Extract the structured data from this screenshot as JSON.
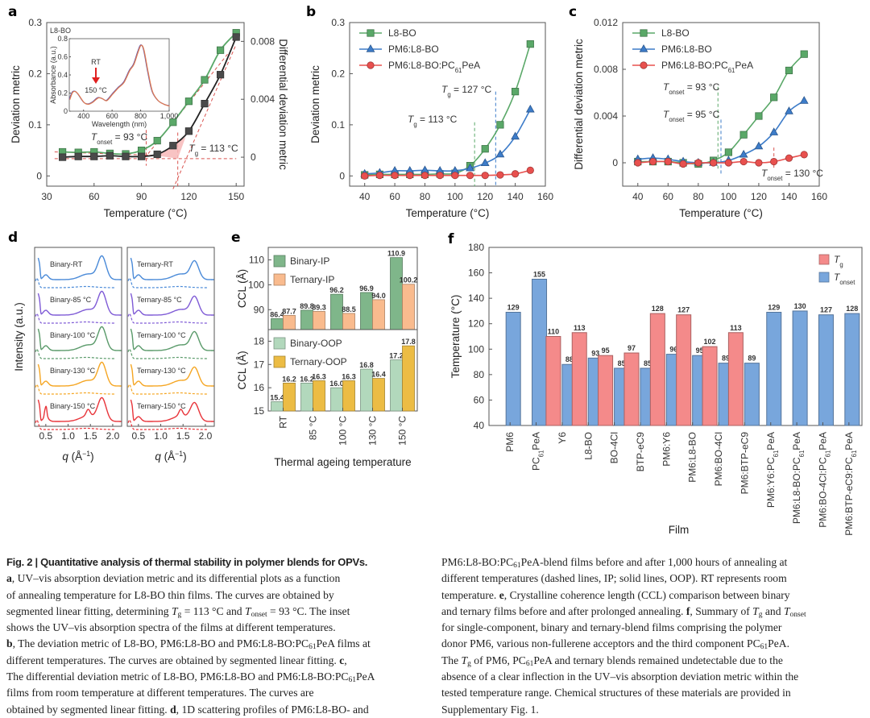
{
  "figure": {
    "panel_labels": [
      "a",
      "b",
      "c",
      "d",
      "e",
      "f"
    ]
  },
  "chart_data": [
    {
      "id": "a",
      "type": "line",
      "title": "",
      "corner_label": "L8-BO",
      "xlabel": "Temperature (°C)",
      "ylabel": "Deviation metric",
      "ylabel_right": "Differential deviation metric",
      "xlim": [
        30,
        155
      ],
      "xticks": [
        30,
        60,
        90,
        120,
        150
      ],
      "ylim": [
        -0.02,
        0.3
      ],
      "yticks": [
        0,
        0.1,
        0.2,
        0.3
      ],
      "ytick_labels": [
        "0",
        "0.1",
        "0.2",
        "0.3"
      ],
      "ylim_right": [
        -0.002,
        0.0093
      ],
      "yticks_right": [
        0,
        0.004,
        0.008
      ],
      "ytick_labels_right": [
        "0",
        "0.004",
        "0.008"
      ],
      "x": [
        40,
        50,
        60,
        70,
        80,
        90,
        100,
        110,
        120,
        130,
        140,
        150
      ],
      "series": [
        {
          "name": "Deviation metric",
          "color": "#5aa868",
          "marker": "square",
          "axis": "left",
          "values": [
            0.047,
            0.046,
            0.047,
            0.044,
            0.043,
            0.05,
            0.069,
            0.105,
            0.146,
            0.188,
            0.246,
            0.28
          ]
        },
        {
          "name": "Differential deviation metric",
          "color": "#222222",
          "marker": "square",
          "axis": "right",
          "values": [
            0.0,
            5e-05,
            5e-05,
            0.0001,
            5e-05,
            5e-05,
            0.0002,
            0.0008,
            0.0018,
            0.0037,
            0.0057,
            0.0083
          ]
        }
      ],
      "annotations": [
        {
          "label_main": "T",
          "label_sub": "onset",
          "label_rest": " = 93 °C",
          "x": 93
        },
        {
          "label_main": "T",
          "label_sub": "g",
          "label_rest": " = 113 °C",
          "x": 113
        }
      ],
      "inset": {
        "xlabel": "Wavelength (nm)",
        "ylabel": "Absorbance (a.u.)",
        "xticks": [
          "400",
          "600",
          "800",
          "1,000"
        ],
        "yticks": [
          "0",
          "0.2",
          "0.4",
          "0.6",
          "0.8"
        ],
        "xlim": [
          300,
          1000
        ],
        "ylim": [
          0,
          0.8
        ],
        "arrow_top": "RT",
        "arrow_bottom": "150 °C",
        "spectrum": {
          "x": [
            300,
            320,
            340,
            360,
            400,
            430,
            460,
            500,
            530,
            560,
            600,
            640,
            680,
            720,
            750,
            780,
            800,
            820,
            850,
            880,
            920,
            960,
            1000
          ],
          "y": [
            0.13,
            0.21,
            0.22,
            0.19,
            0.1,
            0.08,
            0.1,
            0.15,
            0.14,
            0.12,
            0.19,
            0.26,
            0.32,
            0.45,
            0.52,
            0.66,
            0.73,
            0.68,
            0.43,
            0.22,
            0.12,
            0.08,
            0.06
          ]
        }
      }
    },
    {
      "id": "b",
      "type": "line",
      "xlabel": "Temperature (°C)",
      "ylabel": "Deviation metric",
      "xlim": [
        30,
        160
      ],
      "xticks": [
        40,
        60,
        80,
        100,
        120,
        140,
        160
      ],
      "ylim": [
        -0.02,
        0.3
      ],
      "yticks": [
        0,
        0.1,
        0.2,
        0.3
      ],
      "ytick_labels": [
        "0",
        "0.1",
        "0.2",
        "0.3"
      ],
      "legend": "top-left",
      "x": [
        40,
        50,
        60,
        70,
        80,
        90,
        100,
        110,
        120,
        130,
        140,
        150
      ],
      "series": [
        {
          "name": "L8-BO",
          "color": "#5aa868",
          "marker": "square",
          "values": [
            0.002,
            0.003,
            0.003,
            0.003,
            0.003,
            0.004,
            0.005,
            0.02,
            0.053,
            0.1,
            0.165,
            0.258
          ]
        },
        {
          "name": "PM6:L8-BO",
          "color": "#3d7cc9",
          "marker": "triangle",
          "values": [
            0.004,
            0.006,
            0.01,
            0.01,
            0.011,
            0.01,
            0.01,
            0.015,
            0.025,
            0.042,
            0.077,
            0.13
          ]
        },
        {
          "name": "PM6:L8-BO:PC61PeA",
          "name_main": "PM6:L8-BO:PC",
          "name_sub": "61",
          "name_rest": "PeA",
          "color": "#e8504e",
          "marker": "circle",
          "values": [
            0.0,
            0.001,
            0.001,
            0.001,
            0.001,
            0.001,
            0.001,
            0.001,
            0.001,
            0.002,
            0.004,
            0.011
          ]
        }
      ],
      "annotations": [
        {
          "label_main": "T",
          "label_sub": "g",
          "label_rest": " = 127 °C",
          "x": 127,
          "color": "#3d7cc9"
        },
        {
          "label_main": "T",
          "label_sub": "g",
          "label_rest": " = 113 °C",
          "x": 113,
          "color": "#5aa868"
        }
      ]
    },
    {
      "id": "c",
      "type": "line",
      "xlabel": "Temperature (°C)",
      "ylabel": "Differential deviation metric",
      "xlim": [
        30,
        160
      ],
      "xticks": [
        40,
        60,
        80,
        100,
        120,
        140,
        160
      ],
      "ylim": [
        -0.002,
        0.012
      ],
      "yticks": [
        0,
        0.004,
        0.008,
        0.012
      ],
      "ytick_labels": [
        "0",
        "0.004",
        "0.008",
        "0.012"
      ],
      "legend": "top-left",
      "x": [
        40,
        50,
        60,
        70,
        80,
        90,
        100,
        110,
        120,
        130,
        140,
        150
      ],
      "series": [
        {
          "name": "L8-BO",
          "color": "#5aa868",
          "marker": "square",
          "values": [
            0.0001,
            0.0001,
            0.0001,
            0.0,
            -0.0001,
            0.0002,
            0.0009,
            0.0024,
            0.004,
            0.0056,
            0.0079,
            0.0093
          ]
        },
        {
          "name": "PM6:L8-BO",
          "color": "#3d7cc9",
          "marker": "triangle",
          "values": [
            0.0003,
            0.0004,
            0.0003,
            0.0001,
            0.0,
            0.0,
            0.0002,
            0.0007,
            0.0014,
            0.0026,
            0.0044,
            0.0053
          ]
        },
        {
          "name": "PM6:L8-BO:PC61PeA",
          "name_main": "PM6:L8-BO:PC",
          "name_sub": "61",
          "name_rest": "PeA",
          "color": "#e8504e",
          "marker": "circle",
          "values": [
            0.0,
            0.0001,
            0.0001,
            -0.0001,
            0.0,
            0.0,
            0.0,
            0.0001,
            0.0,
            0.0001,
            0.0004,
            0.0007
          ]
        }
      ],
      "annotations": [
        {
          "label_main": "T",
          "label_sub": "onset",
          "label_rest": " = 93 °C",
          "x": 93,
          "color": "#5aa868"
        },
        {
          "label_main": "T",
          "label_sub": "onset",
          "label_rest": " = 95 °C",
          "x": 95,
          "color": "#3d7cc9"
        },
        {
          "label_main": "T",
          "label_sub": "onset",
          "label_rest": " = 130 °C",
          "x": 130,
          "color": "#d9534f"
        }
      ]
    },
    {
      "id": "d",
      "type": "line",
      "ylabel": "Intensity (a.u.)",
      "xlabel_main": "q",
      "xlabel_rest": " (Å",
      "xlabel_sup": "−1",
      "xlabel_end": ")",
      "xlim": [
        0.25,
        2.2
      ],
      "xticks": [
        0.5,
        1.0,
        1.5,
        2.0
      ],
      "xtick_labels": [
        "0.5",
        "1.0",
        "1.5",
        "2.0"
      ],
      "panels": [
        {
          "name": "Binary",
          "traces": [
            {
              "label": "Binary-RT",
              "color": "#4a8ad8"
            },
            {
              "label": "Binary-85 °C",
              "color": "#7f5bd6"
            },
            {
              "label": "Binary-100 °C",
              "color": "#5a9a6a"
            },
            {
              "label": "Binary-130 °C",
              "color": "#f5a623"
            },
            {
              "label": "Binary-150 °C",
              "color": "#e8343a"
            }
          ]
        },
        {
          "name": "Ternary",
          "traces": [
            {
              "label": "Ternary-RT",
              "color": "#4a8ad8"
            },
            {
              "label": "Ternary-85 °C",
              "color": "#7f5bd6"
            },
            {
              "label": "Ternary-100 °C",
              "color": "#5a9a6a"
            },
            {
              "label": "Ternary-130 °C",
              "color": "#f5a623"
            },
            {
              "label": "Ternary-150 °C",
              "color": "#e8343a"
            }
          ]
        }
      ],
      "line_styles": {
        "dashed": "IP",
        "solid": "OOP"
      }
    },
    {
      "id": "e",
      "type": "bar",
      "xlabel": "Thermal ageing temperature",
      "categories": [
        "RT",
        "85 °C",
        "100 °C",
        "130 °C",
        "150 °C"
      ],
      "subplots": [
        {
          "ylabel": "CCL (Å)",
          "ylim": [
            82,
            115
          ],
          "yticks": [
            90,
            100,
            110
          ],
          "series": [
            {
              "name": "Binary-IP",
              "color": "#7fb68a",
              "values": [
                86.4,
                89.8,
                96.2,
                96.9,
                110.9
              ]
            },
            {
              "name": "Ternary-IP",
              "color": "#f9bb8e",
              "values": [
                87.7,
                89.3,
                88.5,
                94.0,
                100.2
              ]
            }
          ]
        },
        {
          "ylabel": "CCL (Å)",
          "ylim": [
            15,
            18.5
          ],
          "yticks": [
            15,
            16,
            17,
            18
          ],
          "series": [
            {
              "name": "Binary-OOP",
              "color": "#b2d8bc",
              "values": [
                15.4,
                16.2,
                16.0,
                16.8,
                17.2
              ]
            },
            {
              "name": "Ternary-OOP",
              "color": "#ecbc44",
              "values": [
                16.2,
                16.3,
                16.3,
                16.4,
                17.8
              ]
            }
          ]
        }
      ]
    },
    {
      "id": "f",
      "type": "bar",
      "xlabel": "Film",
      "ylabel": "Temperature (°C)",
      "ylim": [
        40,
        180
      ],
      "yticks": [
        40,
        60,
        80,
        100,
        120,
        140,
        160,
        180
      ],
      "legend": "top-right",
      "categories": [
        {
          "main": "PM6"
        },
        {
          "main": "PC",
          "sub": "61",
          "rest": "PeA"
        },
        {
          "main": "Y6"
        },
        {
          "main": "L8-BO"
        },
        {
          "main": "BO-4Cl"
        },
        {
          "main": "BTP-eC9"
        },
        {
          "main": "PM6:Y6"
        },
        {
          "main": "PM6:L8-BO"
        },
        {
          "main": "PM6:BO-4Cl"
        },
        {
          "main": "PM6:BTP-eC9"
        },
        {
          "main": "PM6:Y6:PC",
          "sub": "61",
          "rest": "PeA"
        },
        {
          "main": "PM6:L8-BO:PC",
          "sub": "61",
          "rest": "PeA"
        },
        {
          "main": "PM6:BO-4Cl:PC",
          "sub": "61",
          "rest": "PeA"
        },
        {
          "main": "PM6:BTP-eC9:PC",
          "sub": "61",
          "rest": "PeA"
        }
      ],
      "series": [
        {
          "name": "Tg",
          "name_main": "T",
          "name_sub": "g",
          "color": "#f48a8a",
          "values": [
            null,
            null,
            110,
            113,
            95,
            97,
            128,
            127,
            102,
            113,
            null,
            null,
            null,
            null
          ]
        },
        {
          "name": "Tonset",
          "name_main": "T",
          "name_sub": "onset",
          "color": "#78a6dc",
          "values": [
            129,
            155,
            88,
            93,
            85,
            85,
            96,
            95,
            89,
            89,
            129,
            130,
            127,
            128
          ]
        }
      ]
    }
  ],
  "caption": {
    "fig_label": "Fig. 2",
    "title": "Quantitative analysis of thermal stability in polymer blends for OPVs.",
    "left_lines": [
      [
        {
          "b": "a"
        },
        {
          "t": ", UV–vis absorption deviation metric and its differential plots as a function"
        }
      ],
      [
        {
          "t": "of annealing temperature for L8-BO thin films. The curves are obtained by"
        }
      ],
      [
        {
          "t": "segmented linear fitting, determining "
        },
        {
          "i": "T"
        },
        {
          "s": "g"
        },
        {
          "t": " = 113 °C and "
        },
        {
          "i": "T"
        },
        {
          "s": "onset"
        },
        {
          "t": " = 93 °C. The inset"
        }
      ],
      [
        {
          "t": "shows the UV–vis absorption spectra of the films at different temperatures."
        }
      ],
      [
        {
          "b": "b"
        },
        {
          "t": ", The deviation metric of L8-BO, PM6:L8-BO and PM6:L8-BO:PC"
        },
        {
          "s": "61"
        },
        {
          "t": "PeA films at"
        }
      ],
      [
        {
          "t": "different temperatures. The curves are obtained by segmented linear fitting. "
        },
        {
          "b": "c"
        },
        {
          "t": ","
        }
      ],
      [
        {
          "t": "The differential deviation metric of L8-BO, PM6:L8-BO and PM6:L8-BO:PC"
        },
        {
          "s": "61"
        },
        {
          "t": "PeA"
        }
      ],
      [
        {
          "t": "films from room temperature at different temperatures. The curves are"
        }
      ],
      [
        {
          "t": "obtained by segmented linear fitting. "
        },
        {
          "b": "d"
        },
        {
          "t": ", 1D scattering profiles of PM6:L8-BO- and"
        }
      ]
    ],
    "right_lines": [
      [
        {
          "t": "PM6:L8-BO:PC"
        },
        {
          "s": "61"
        },
        {
          "t": "PeA-blend films before and after 1,000 hours of annealing at"
        }
      ],
      [
        {
          "t": "different temperatures (dashed lines, IP; solid lines, OOP). RT represents room"
        }
      ],
      [
        {
          "t": "temperature. "
        },
        {
          "b": "e"
        },
        {
          "t": ", Crystalline coherence length (CCL) comparison between binary"
        }
      ],
      [
        {
          "t": "and ternary films before and after prolonged annealing. "
        },
        {
          "b": "f"
        },
        {
          "t": ", Summary of "
        },
        {
          "i": "T"
        },
        {
          "s": "g"
        },
        {
          "t": " and "
        },
        {
          "i": "T"
        },
        {
          "s": "onset"
        }
      ],
      [
        {
          "t": "for single-component, binary and ternary-blend films comprising the polymer"
        }
      ],
      [
        {
          "t": "donor PM6, various non-fullerene acceptors and the third component PC"
        },
        {
          "s": "61"
        },
        {
          "t": "PeA."
        }
      ],
      [
        {
          "t": "The "
        },
        {
          "i": "T"
        },
        {
          "s": "g"
        },
        {
          "t": " of PM6, PC"
        },
        {
          "s": "61"
        },
        {
          "t": "PeA and ternary blends remained undetectable due to the"
        }
      ],
      [
        {
          "t": "absence of a clear inflection in the UV–vis absorption deviation metric within the"
        }
      ],
      [
        {
          "t": "tested temperature range. Chemical structures of these materials are provided in"
        }
      ],
      [
        {
          "t": "Supplementary Fig. 1."
        }
      ]
    ]
  }
}
